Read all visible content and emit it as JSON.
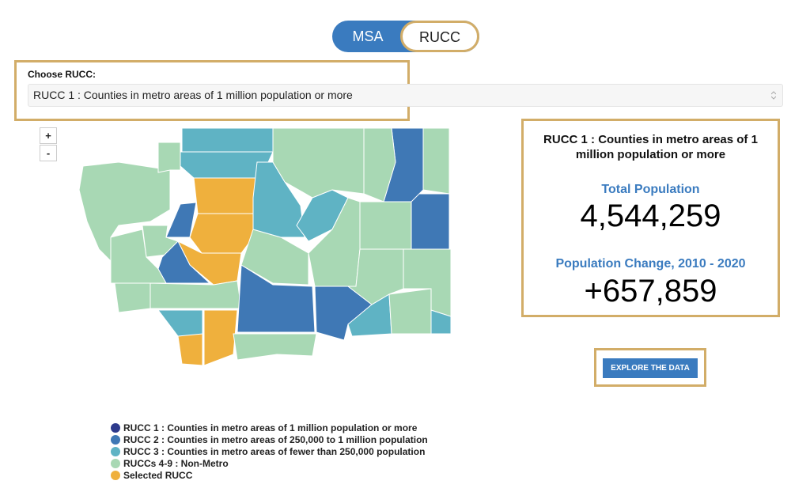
{
  "toggle": {
    "options": [
      "MSA",
      "RUCC"
    ]
  },
  "selector": {
    "label": "Choose RUCC:",
    "selected": "RUCC 1 : Counties in metro areas of 1 million population or more"
  },
  "zoom": {
    "in": "+",
    "out": "-"
  },
  "summary": {
    "title": "RUCC 1 : Counties in metro areas of 1 million population or more",
    "total_label": "Total Population",
    "total_value": "4,544,259",
    "change_label": "Population Change, 2010 - 2020",
    "change_value": "+657,859"
  },
  "button": "EXPLORE THE DATA",
  "legend": [
    {
      "label": "RUCC 1 : Counties in metro areas of 1 million population or more",
      "color": "#2d3a8c"
    },
    {
      "label": "RUCC 2 : Counties in metro areas of 250,000 to 1 million population",
      "color": "#3f78b5"
    },
    {
      "label": "RUCC 3 : Counties in metro areas of fewer than 250,000 population",
      "color": "#5fb3c4"
    },
    {
      "label": "RUCCs 4-9 : Non-Metro",
      "color": "#a8d8b4"
    },
    {
      "label": "Selected RUCC",
      "color": "#efb03d"
    }
  ]
}
